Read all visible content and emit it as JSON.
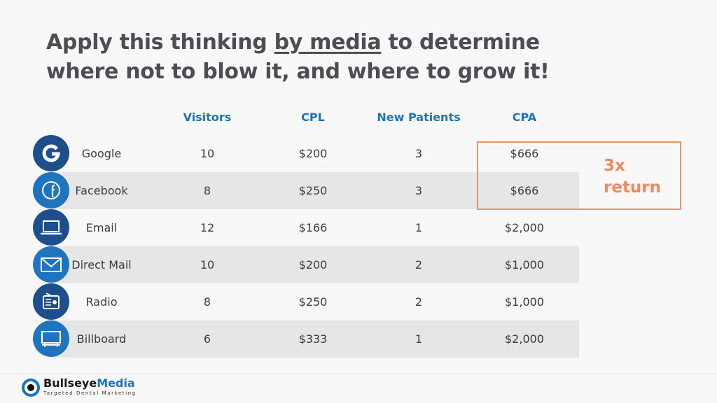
{
  "title": {
    "line1_start": "Apply this thinking",
    "line1_emphasis": "by media",
    "line1_end": "to determine",
    "line2": "where not to blow it, and where to grow it!"
  },
  "table": {
    "headers": [
      "Visitors",
      "CPL",
      "New Patients",
      "CPA"
    ],
    "rows": [
      {
        "label": "Google",
        "cells": [
          "10",
          "$200",
          "3",
          "$666"
        ]
      },
      {
        "label": "Facebook",
        "cells": [
          "8",
          "$250",
          "3",
          "$666"
        ]
      },
      {
        "label": "Email",
        "cells": [
          "12",
          "$166",
          "1",
          "$2,000"
        ]
      },
      {
        "label": "Direct Mail",
        "cells": [
          "10",
          "$200",
          "2",
          "$1,000"
        ]
      },
      {
        "label": "Radio",
        "cells": [
          "8",
          "$250",
          "2",
          "$1,000"
        ]
      },
      {
        "label": "Billboard",
        "cells": [
          "6",
          "$333",
          "1",
          "$2,000"
        ]
      }
    ]
  },
  "annotation": "3x return",
  "brand": {
    "name_first": "Bullseye",
    "name_second": "Media",
    "tagline": "Targeted Dental Marketing"
  }
}
